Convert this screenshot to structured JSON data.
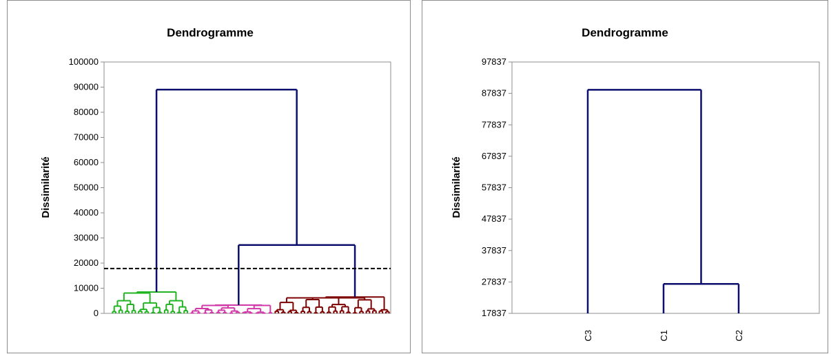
{
  "chart_data": [
    {
      "type": "dendrogram",
      "title": "Dendrogramme",
      "ylabel": "Dissimilarité",
      "xlabel": "",
      "ylim": [
        0,
        100000
      ],
      "yticks": [
        0,
        10000,
        20000,
        30000,
        40000,
        50000,
        60000,
        70000,
        80000,
        90000,
        100000
      ],
      "grid": false,
      "truncation_line": 17837,
      "links": [
        {
          "left": "C3",
          "right": "C1+C2",
          "height": 89000,
          "color": "#0c0f6c"
        },
        {
          "left": "C1",
          "right": "C2",
          "height": 27200,
          "color": "#0c0f6c"
        }
      ],
      "clusters": [
        {
          "name": "C3",
          "color": "#22b322",
          "merge_height": 8500,
          "leaves": 24
        },
        {
          "name": "C1",
          "color": "#d138a8",
          "merge_height": 3300,
          "leaves": 26
        },
        {
          "name": "C2",
          "color": "#7d0000",
          "merge_height": 6500,
          "leaves": 36
        }
      ]
    },
    {
      "type": "dendrogram",
      "title": "Dendrogramme",
      "ylabel": "Dissimilarité",
      "xlabel": "",
      "ylim": [
        17837,
        97837
      ],
      "yticks": [
        17837,
        27837,
        37837,
        47837,
        57837,
        67837,
        77837,
        87837,
        97837
      ],
      "grid": false,
      "leaves": [
        "C3",
        "C1",
        "C2"
      ],
      "links": [
        {
          "left": "C3",
          "right": "C1+C2",
          "height": 89000,
          "color": "#0c0f6c"
        },
        {
          "left": "C1",
          "right": "C2",
          "height": 27200,
          "color": "#0c0f6c"
        }
      ]
    }
  ]
}
